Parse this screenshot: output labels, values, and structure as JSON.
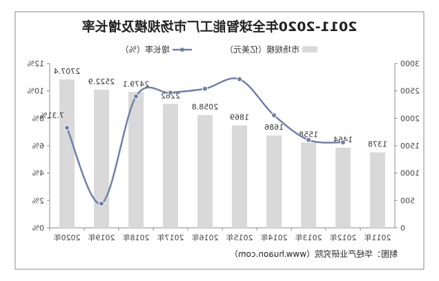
{
  "chart_data": {
    "type": "bar+line",
    "title": "2011-2020年全球智能工厂市场规模及增长率",
    "categories": [
      "2011年",
      "2012年",
      "2013年",
      "2014年",
      "2015年",
      "2016年",
      "2017年",
      "2018年",
      "2019年",
      "2020年"
    ],
    "series": [
      {
        "name": "市场规模（亿美元）",
        "type": "bar",
        "axis": "left",
        "values": [
          1378,
          1464,
          1558,
          1686,
          1869,
          2058.8,
          2262,
          2479.1,
          2522.9,
          2707.4
        ],
        "labels": [
          "1378",
          "1464",
          "1558",
          "1686",
          "1869",
          "2058.8",
          "2262",
          "2479.1",
          "2522.9",
          "2707.4"
        ],
        "color": "#d9d9d9"
      },
      {
        "name": "增长率（%）",
        "type": "line",
        "axis": "right",
        "values": [
          null,
          6.24,
          6.42,
          8.22,
          10.85,
          10.16,
          9.87,
          9.6,
          1.77,
          7.31
        ],
        "color": "#6f7fa8"
      }
    ],
    "point_label": {
      "index": 9,
      "text": "7.31%"
    },
    "left_axis": {
      "ylim": [
        0,
        3000
      ],
      "ticks": [
        "0",
        "500",
        "1000",
        "1500",
        "2000",
        "2500",
        "3000"
      ]
    },
    "right_axis": {
      "ylim": [
        0,
        12
      ],
      "ticks": [
        "0%",
        "2%",
        "4%",
        "6%",
        "8%",
        "10%",
        "12%"
      ]
    },
    "legend_placement": "top-center",
    "grid": false
  },
  "source": "制图：华经产业研究院（www.huaon.com）",
  "watermark": "华经产业研究院 www.huaon.com"
}
